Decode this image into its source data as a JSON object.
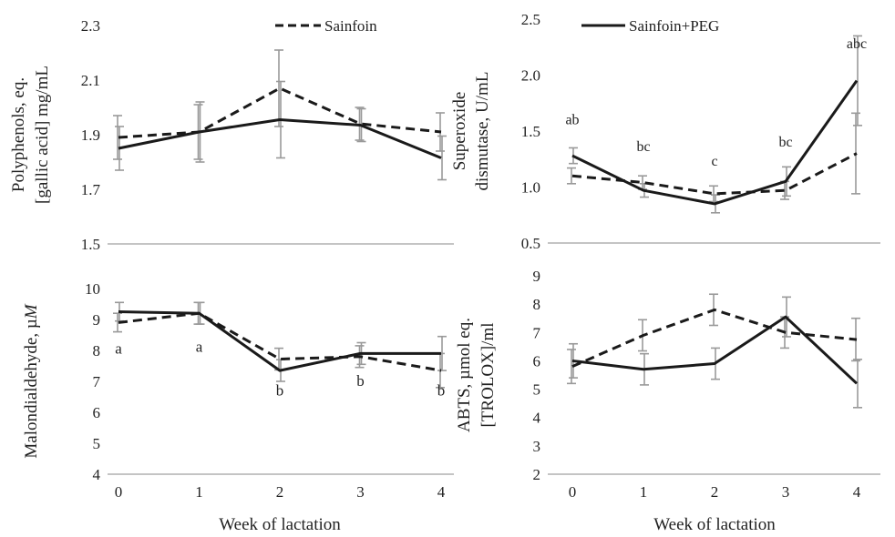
{
  "legend": {
    "series_a": "Sainfoin",
    "series_b": "Sainfoin+PEG",
    "series_a_style": "dashed",
    "series_b_style": "solid"
  },
  "shared_x_title": "Week of lactation",
  "colors": {
    "line": "#1a1a1a",
    "error_bar": "#999999",
    "sig_letters_top_right": "#777777",
    "sig_letters_bottom_left": "#333333"
  },
  "chart_data": [
    {
      "id": "polyphenols",
      "type": "line",
      "ylabel_lines": [
        "Polyphenols, eq.",
        "[gallic acid] mg/mL"
      ],
      "ylim": [
        1.5,
        2.3
      ],
      "yticks": [
        1.5,
        1.7,
        1.9,
        2.1,
        2.3
      ],
      "yticklabels": [
        "1.5",
        "1.7",
        "1.9",
        "2.1",
        "2.3"
      ],
      "x": [
        0,
        1,
        2,
        3,
        4
      ],
      "xticklabels": [],
      "series": [
        {
          "name": "Sainfoin",
          "values": [
            1.89,
            1.91,
            2.07,
            1.94,
            1.91
          ],
          "errors": [
            0.08,
            0.1,
            0.14,
            0.06,
            0.07
          ]
        },
        {
          "name": "Sainfoin+PEG",
          "values": [
            1.85,
            1.91,
            1.955,
            1.935,
            1.815
          ],
          "errors": [
            0.08,
            0.11,
            0.14,
            0.06,
            0.08
          ]
        }
      ],
      "annotations": []
    },
    {
      "id": "sod",
      "type": "line",
      "ylabel_lines": [
        "Superoxide",
        "dismutase, U/mL"
      ],
      "ylim": [
        0.5,
        2.5
      ],
      "yticks": [
        0.5,
        1.0,
        1.5,
        2.0,
        2.5
      ],
      "yticklabels": [
        "0.5",
        "1.0",
        "1.5",
        "2.0",
        "2.5"
      ],
      "x": [
        0,
        1,
        2,
        3,
        4
      ],
      "xticklabels": [],
      "series": [
        {
          "name": "Sainfoin",
          "values": [
            1.1,
            1.04,
            0.94,
            0.97,
            1.3
          ],
          "errors": [
            0.07,
            0.06,
            0.07,
            0.08,
            0.36
          ]
        },
        {
          "name": "Sainfoin+PEG",
          "values": [
            1.28,
            0.97,
            0.85,
            1.05,
            1.95
          ],
          "errors": [
            0.07,
            0.06,
            0.08,
            0.13,
            0.4
          ]
        }
      ],
      "annotations": [
        {
          "x": 0,
          "y": 1.56,
          "text": "ab"
        },
        {
          "x": 1,
          "y": 1.32,
          "text": "bc"
        },
        {
          "x": 2,
          "y": 1.19,
          "text": "c"
        },
        {
          "x": 3,
          "y": 1.36,
          "text": "bc"
        },
        {
          "x": 4,
          "y": 2.24,
          "text": "abc"
        }
      ]
    },
    {
      "id": "mda",
      "type": "line",
      "ylabel_lines": [
        "Malondialdehyde, µM"
      ],
      "ylabel_italic_suffix": "M",
      "ylim": [
        4,
        10
      ],
      "yticks": [
        4,
        5,
        6,
        7,
        8,
        9,
        10
      ],
      "yticklabels": [
        "4",
        "5",
        "6",
        "7",
        "8",
        "9",
        "10"
      ],
      "x": [
        0,
        1,
        2,
        3,
        4
      ],
      "xticklabels": [
        "0",
        "1",
        "2",
        "3",
        "4"
      ],
      "xlabel": "Week of lactation",
      "series": [
        {
          "name": "Sainfoin",
          "values": [
            8.9,
            9.2,
            7.72,
            7.8,
            7.35
          ],
          "errors": [
            0.3,
            0.35,
            0.35,
            0.35,
            0.55
          ]
        },
        {
          "name": "Sainfoin+PEG",
          "values": [
            9.25,
            9.2,
            7.35,
            7.9,
            7.9
          ],
          "errors": [
            0.3,
            0.35,
            0.35,
            0.35,
            0.55
          ]
        }
      ],
      "annotations": [
        {
          "x": 0,
          "y": 7.9,
          "text": "a"
        },
        {
          "x": 1,
          "y": 7.95,
          "text": "a"
        },
        {
          "x": 2,
          "y": 6.55,
          "text": "b"
        },
        {
          "x": 3,
          "y": 6.85,
          "text": "b"
        },
        {
          "x": 4,
          "y": 6.55,
          "text": "b"
        }
      ]
    },
    {
      "id": "abts",
      "type": "line",
      "ylabel_lines": [
        "ABTS, µmol eq.",
        "[TROLOX]/ml"
      ],
      "ylim": [
        2,
        9
      ],
      "yticks": [
        2,
        3,
        4,
        5,
        6,
        7,
        8,
        9
      ],
      "yticklabels": [
        "2",
        "3",
        "4",
        "5",
        "6",
        "7",
        "8",
        "9"
      ],
      "x": [
        0,
        1,
        2,
        3,
        4
      ],
      "xticklabels": [
        "0",
        "1",
        "2",
        "3",
        "4"
      ],
      "xlabel": "Week of lactation",
      "series": [
        {
          "name": "Sainfoin",
          "values": [
            5.8,
            6.9,
            7.8,
            7.0,
            6.75
          ],
          "errors": [
            0.6,
            0.55,
            0.55,
            0.55,
            0.75
          ]
        },
        {
          "name": "Sainfoin+PEG",
          "values": [
            6.0,
            5.7,
            5.9,
            7.55,
            5.2
          ],
          "errors": [
            0.6,
            0.55,
            0.55,
            0.7,
            0.85
          ]
        }
      ],
      "annotations": []
    }
  ]
}
